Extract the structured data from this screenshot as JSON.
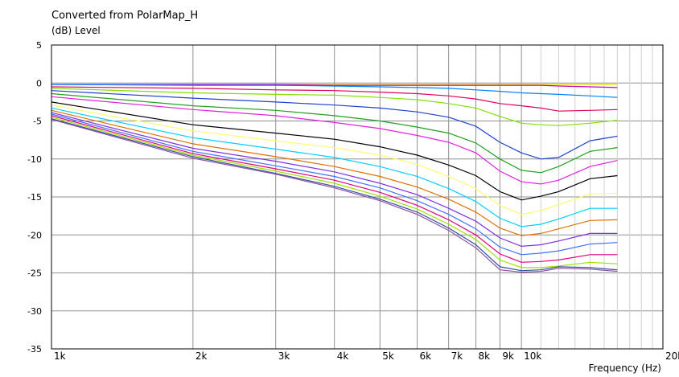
{
  "chart_data": {
    "type": "line",
    "title": "Converted from PolarMap_H",
    "ylabel": "(dB)  Level",
    "xlabel": "Frequency  (Hz)",
    "xscale": "log",
    "xlim": [
      1000,
      20000
    ],
    "ylim": [
      -35,
      5
    ],
    "yticks": [
      5,
      0,
      -5,
      -10,
      -15,
      -20,
      -25,
      -30,
      -35
    ],
    "xticks": [
      {
        "value": 1000,
        "label": "1k"
      },
      {
        "value": 2000,
        "label": "2k"
      },
      {
        "value": 3000,
        "label": "3k"
      },
      {
        "value": 4000,
        "label": "4k"
      },
      {
        "value": 5000,
        "label": "5k"
      },
      {
        "value": 6000,
        "label": "6k"
      },
      {
        "value": 7000,
        "label": "7k"
      },
      {
        "value": 8000,
        "label": "8k"
      },
      {
        "value": 9000,
        "label": "9k"
      },
      {
        "value": 10000,
        "label": "10k"
      },
      {
        "value": 20000,
        "label": "20k"
      }
    ],
    "grid": true,
    "x": [
      1000,
      2000,
      3000,
      4000,
      5000,
      6000,
      7000,
      8000,
      9000,
      10000,
      11000,
      12000,
      14000,
      16000
    ],
    "series": [
      {
        "color": "#e0e000",
        "values": [
          -0.2,
          -0.2,
          -0.2,
          -0.2,
          -0.2,
          -0.2,
          -0.2,
          -0.2,
          -0.2,
          -0.2,
          -0.2,
          -0.2,
          -0.2,
          -0.2
        ]
      },
      {
        "color": "#c000c0",
        "values": [
          -0.2,
          -0.2,
          -0.2,
          -0.3,
          -0.3,
          -0.3,
          -0.3,
          -0.3,
          -0.3,
          -0.3,
          -0.3,
          -0.4,
          -0.5,
          -0.6
        ]
      },
      {
        "color": "#0080ff",
        "values": [
          -0.2,
          -0.3,
          -0.3,
          -0.4,
          -0.5,
          -0.6,
          -0.7,
          -0.9,
          -1.1,
          -1.3,
          -1.4,
          -1.5,
          -1.7,
          -1.9
        ]
      },
      {
        "color": "#e00060",
        "values": [
          -0.5,
          -0.7,
          -0.9,
          -1.0,
          -1.2,
          -1.4,
          -1.7,
          -2.1,
          -2.7,
          -3.0,
          -3.3,
          -3.7,
          -3.6,
          -3.5
        ]
      },
      {
        "color": "#80e000",
        "values": [
          -0.7,
          -1.3,
          -1.5,
          -1.6,
          -1.9,
          -2.2,
          -2.7,
          -3.3,
          -4.4,
          -5.3,
          -5.5,
          -5.6,
          -5.3,
          -4.9
        ]
      },
      {
        "color": "#2040d0",
        "values": [
          -1.0,
          -2.0,
          -2.5,
          -2.9,
          -3.3,
          -3.8,
          -4.5,
          -5.7,
          -7.8,
          -9.2,
          -10.0,
          -9.8,
          -7.6,
          -7.0
        ]
      },
      {
        "color": "#20a020",
        "values": [
          -1.4,
          -3.0,
          -3.6,
          -4.3,
          -5.0,
          -5.8,
          -6.6,
          -7.9,
          -10.0,
          -11.5,
          -11.8,
          -11.0,
          -9.0,
          -8.5
        ]
      },
      {
        "color": "#e020e0",
        "values": [
          -1.8,
          -3.5,
          -4.3,
          -5.2,
          -6.0,
          -6.9,
          -7.8,
          -9.2,
          -11.6,
          -13.0,
          -13.3,
          -12.8,
          -11.0,
          -10.2
        ]
      },
      {
        "color": "#000000",
        "values": [
          -2.5,
          -5.5,
          -6.6,
          -7.4,
          -8.4,
          -9.5,
          -10.8,
          -12.2,
          -14.3,
          -15.4,
          -14.9,
          -14.3,
          -12.6,
          -12.2
        ]
      },
      {
        "color": "#ffff70",
        "values": [
          -2.9,
          -6.3,
          -7.6,
          -8.5,
          -9.5,
          -10.7,
          -12.3,
          -13.9,
          -16.1,
          -17.3,
          -16.8,
          -16.0,
          -14.6,
          -14.5
        ]
      },
      {
        "color": "#00d0ff",
        "values": [
          -3.3,
          -7.2,
          -8.7,
          -9.8,
          -11.0,
          -12.3,
          -13.9,
          -15.6,
          -17.8,
          -18.9,
          -18.6,
          -17.9,
          -16.5,
          -16.5
        ]
      },
      {
        "color": "#e07000",
        "values": [
          -3.6,
          -8.0,
          -9.7,
          -11.0,
          -12.3,
          -13.7,
          -15.3,
          -17.0,
          -19.1,
          -20.1,
          -19.8,
          -19.2,
          -18.1,
          -18.0
        ]
      },
      {
        "color": "#8030e0",
        "values": [
          -3.9,
          -8.6,
          -10.3,
          -11.7,
          -13.2,
          -14.7,
          -16.5,
          -18.2,
          -20.4,
          -21.5,
          -21.3,
          -20.8,
          -19.8,
          -19.8
        ]
      },
      {
        "color": "#4070ff",
        "values": [
          -4.1,
          -9.0,
          -10.9,
          -12.3,
          -13.8,
          -15.5,
          -17.3,
          -19.2,
          -21.6,
          -22.6,
          -22.4,
          -22.1,
          -21.2,
          -21.0
        ]
      },
      {
        "color": "#e00080",
        "values": [
          -4.3,
          -9.3,
          -11.3,
          -12.8,
          -14.4,
          -16.1,
          -18.0,
          -20.0,
          -22.5,
          -23.6,
          -23.5,
          -23.3,
          -22.6,
          -22.6
        ]
      },
      {
        "color": "#a0e000",
        "values": [
          -4.5,
          -9.5,
          -11.6,
          -13.2,
          -14.9,
          -16.6,
          -18.6,
          -20.6,
          -23.3,
          -24.3,
          -24.3,
          -24.1,
          -23.6,
          -23.8
        ]
      },
      {
        "color": "#3050a0",
        "values": [
          -4.7,
          -9.7,
          -11.9,
          -13.6,
          -15.3,
          -17.0,
          -19.1,
          -21.3,
          -24.2,
          -24.7,
          -24.6,
          -24.2,
          -24.3,
          -24.6
        ]
      },
      {
        "color": "#9050a0",
        "values": [
          -4.8,
          -9.9,
          -12.0,
          -13.8,
          -15.5,
          -17.3,
          -19.4,
          -21.7,
          -24.6,
          -24.9,
          -24.8,
          -24.4,
          -24.5,
          -24.8
        ]
      }
    ]
  }
}
